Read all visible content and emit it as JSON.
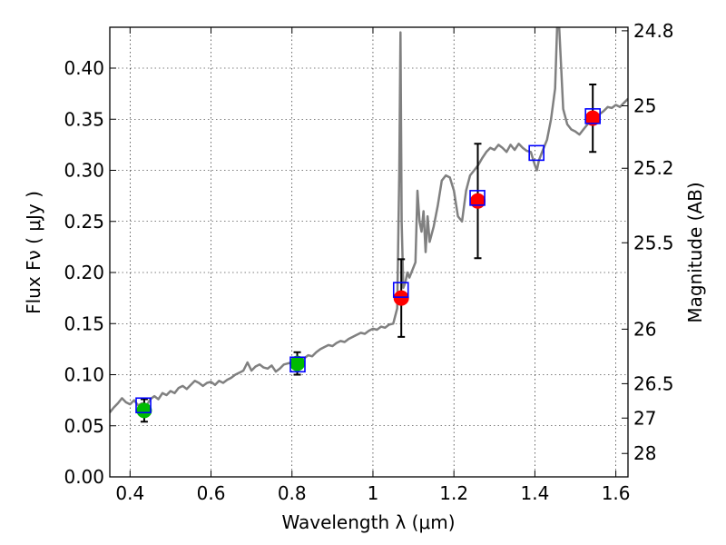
{
  "chart_data": {
    "type": "scatter",
    "title": "",
    "xlabel": "Wavelength  λ (μm)",
    "ylabel": "Flux  Fν  ( μJy )",
    "y2label": "Magnitude (AB)",
    "xlim": [
      0.35,
      1.63
    ],
    "ylim": [
      0.0,
      0.44
    ],
    "grid": true,
    "x_ticks": [
      0.4,
      0.6,
      0.8,
      1.0,
      1.2,
      1.4,
      1.6
    ],
    "x_tick_labels": [
      "0.4",
      "0.6",
      "0.8",
      "1",
      "1.2",
      "1.4",
      "1.6"
    ],
    "y_ticks": [
      0.0,
      0.05,
      0.1,
      0.15,
      0.2,
      0.25,
      0.3,
      0.35,
      0.4
    ],
    "y_tick_labels": [
      "0.00",
      "0.05",
      "0.10",
      "0.15",
      "0.20",
      "0.25",
      "0.30",
      "0.35",
      "0.40"
    ],
    "mag_ticks": [
      24.8,
      25,
      25.2,
      25.5,
      26,
      26.5,
      27,
      28
    ],
    "mag_tick_labels": [
      "24.8",
      "25",
      "25.2",
      "25.5",
      "26",
      "26.5",
      "27",
      "28"
    ],
    "colors": {
      "spectrum": "#808080",
      "model_box": "#0000ff",
      "optical_point": "#00bb00",
      "nir_point": "#ff0000",
      "errorbar": "#000000"
    },
    "model_points": [
      {
        "x": 0.433,
        "y": 0.07
      },
      {
        "x": 0.814,
        "y": 0.11
      },
      {
        "x": 1.069,
        "y": 0.183
      },
      {
        "x": 1.258,
        "y": 0.273
      },
      {
        "x": 1.404,
        "y": 0.317
      },
      {
        "x": 1.543,
        "y": 0.353
      }
    ],
    "observed_points": [
      {
        "x": 0.435,
        "y": 0.065,
        "yerr": 0.011,
        "color": "optical_point"
      },
      {
        "x": 0.813,
        "y": 0.111,
        "yerr": 0.011,
        "color": "optical_point"
      },
      {
        "x": 1.07,
        "y": 0.175,
        "yerr": 0.038,
        "color": "nir_point"
      },
      {
        "x": 1.259,
        "y": 0.27,
        "yerr": 0.056,
        "color": "nir_point"
      },
      {
        "x": 1.543,
        "y": 0.351,
        "yerr": 0.033,
        "color": "nir_point"
      }
    ],
    "spectrum": [
      [
        0.35,
        0.063
      ],
      [
        0.36,
        0.068
      ],
      [
        0.37,
        0.072
      ],
      [
        0.38,
        0.077
      ],
      [
        0.39,
        0.073
      ],
      [
        0.4,
        0.071
      ],
      [
        0.41,
        0.075
      ],
      [
        0.42,
        0.07
      ],
      [
        0.43,
        0.072
      ],
      [
        0.44,
        0.069
      ],
      [
        0.45,
        0.076
      ],
      [
        0.46,
        0.079
      ],
      [
        0.47,
        0.076
      ],
      [
        0.48,
        0.082
      ],
      [
        0.49,
        0.08
      ],
      [
        0.5,
        0.084
      ],
      [
        0.51,
        0.082
      ],
      [
        0.52,
        0.087
      ],
      [
        0.53,
        0.089
      ],
      [
        0.54,
        0.086
      ],
      [
        0.55,
        0.09
      ],
      [
        0.56,
        0.094
      ],
      [
        0.57,
        0.092
      ],
      [
        0.58,
        0.089
      ],
      [
        0.59,
        0.092
      ],
      [
        0.6,
        0.093
      ],
      [
        0.61,
        0.09
      ],
      [
        0.62,
        0.094
      ],
      [
        0.63,
        0.092
      ],
      [
        0.64,
        0.095
      ],
      [
        0.65,
        0.097
      ],
      [
        0.66,
        0.1
      ],
      [
        0.67,
        0.102
      ],
      [
        0.68,
        0.104
      ],
      [
        0.69,
        0.112
      ],
      [
        0.7,
        0.104
      ],
      [
        0.71,
        0.108
      ],
      [
        0.72,
        0.11
      ],
      [
        0.73,
        0.107
      ],
      [
        0.74,
        0.106
      ],
      [
        0.75,
        0.109
      ],
      [
        0.76,
        0.103
      ],
      [
        0.77,
        0.106
      ],
      [
        0.78,
        0.11
      ],
      [
        0.79,
        0.111
      ],
      [
        0.8,
        0.112
      ],
      [
        0.81,
        0.114
      ],
      [
        0.82,
        0.115
      ],
      [
        0.83,
        0.116
      ],
      [
        0.84,
        0.119
      ],
      [
        0.85,
        0.118
      ],
      [
        0.86,
        0.122
      ],
      [
        0.87,
        0.125
      ],
      [
        0.88,
        0.127
      ],
      [
        0.89,
        0.129
      ],
      [
        0.9,
        0.128
      ],
      [
        0.91,
        0.131
      ],
      [
        0.92,
        0.133
      ],
      [
        0.93,
        0.132
      ],
      [
        0.94,
        0.135
      ],
      [
        0.95,
        0.137
      ],
      [
        0.96,
        0.139
      ],
      [
        0.97,
        0.141
      ],
      [
        0.98,
        0.14
      ],
      [
        0.99,
        0.143
      ],
      [
        1.0,
        0.145
      ],
      [
        1.01,
        0.144
      ],
      [
        1.02,
        0.147
      ],
      [
        1.03,
        0.146
      ],
      [
        1.04,
        0.149
      ],
      [
        1.05,
        0.15
      ],
      [
        1.06,
        0.165
      ],
      [
        1.065,
        0.3
      ],
      [
        1.068,
        0.435
      ],
      [
        1.071,
        0.25
      ],
      [
        1.075,
        0.185
      ],
      [
        1.08,
        0.19
      ],
      [
        1.085,
        0.2
      ],
      [
        1.09,
        0.195
      ],
      [
        1.1,
        0.205
      ],
      [
        1.105,
        0.21
      ],
      [
        1.11,
        0.28
      ],
      [
        1.115,
        0.25
      ],
      [
        1.12,
        0.24
      ],
      [
        1.125,
        0.26
      ],
      [
        1.13,
        0.22
      ],
      [
        1.135,
        0.255
      ],
      [
        1.14,
        0.23
      ],
      [
        1.15,
        0.245
      ],
      [
        1.16,
        0.265
      ],
      [
        1.17,
        0.29
      ],
      [
        1.18,
        0.295
      ],
      [
        1.19,
        0.293
      ],
      [
        1.2,
        0.28
      ],
      [
        1.21,
        0.255
      ],
      [
        1.22,
        0.25
      ],
      [
        1.23,
        0.28
      ],
      [
        1.24,
        0.295
      ],
      [
        1.25,
        0.3
      ],
      [
        1.26,
        0.305
      ],
      [
        1.27,
        0.312
      ],
      [
        1.28,
        0.318
      ],
      [
        1.29,
        0.322
      ],
      [
        1.3,
        0.32
      ],
      [
        1.31,
        0.325
      ],
      [
        1.32,
        0.322
      ],
      [
        1.33,
        0.318
      ],
      [
        1.34,
        0.325
      ],
      [
        1.35,
        0.32
      ],
      [
        1.36,
        0.326
      ],
      [
        1.37,
        0.322
      ],
      [
        1.38,
        0.319
      ],
      [
        1.39,
        0.318
      ],
      [
        1.4,
        0.305
      ],
      [
        1.405,
        0.3
      ],
      [
        1.41,
        0.31
      ],
      [
        1.42,
        0.32
      ],
      [
        1.43,
        0.33
      ],
      [
        1.44,
        0.35
      ],
      [
        1.45,
        0.38
      ],
      [
        1.455,
        0.44
      ],
      [
        1.46,
        0.44
      ],
      [
        1.465,
        0.4
      ],
      [
        1.47,
        0.36
      ],
      [
        1.48,
        0.345
      ],
      [
        1.49,
        0.34
      ],
      [
        1.5,
        0.338
      ],
      [
        1.51,
        0.335
      ],
      [
        1.52,
        0.34
      ],
      [
        1.53,
        0.345
      ],
      [
        1.54,
        0.35
      ],
      [
        1.55,
        0.352
      ],
      [
        1.56,
        0.355
      ],
      [
        1.57,
        0.358
      ],
      [
        1.58,
        0.362
      ],
      [
        1.59,
        0.361
      ],
      [
        1.6,
        0.364
      ],
      [
        1.61,
        0.362
      ],
      [
        1.62,
        0.366
      ],
      [
        1.63,
        0.37
      ]
    ]
  }
}
